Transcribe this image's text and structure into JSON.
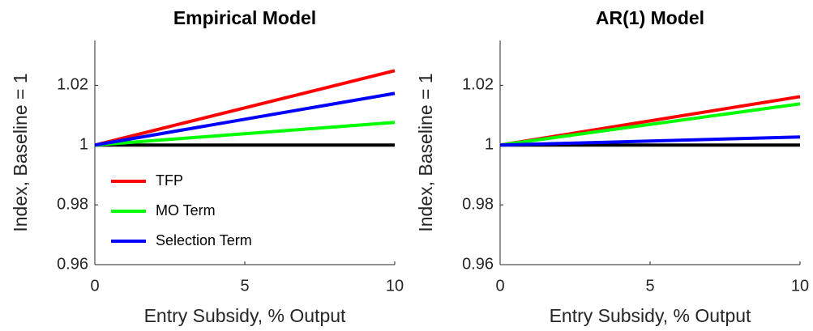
{
  "chart_data": [
    {
      "type": "line",
      "title": "Empirical Model",
      "x_label": "Entry Subsidy, % Output",
      "y_label": "Index, Baseline = 1",
      "x": [
        0,
        10
      ],
      "series": [
        {
          "name": "TFP",
          "color": "#ff0000",
          "values": [
            1,
            1.0249
          ]
        },
        {
          "name": "MO Term",
          "color": "#00ff00",
          "values": [
            1,
            1.0076
          ]
        },
        {
          "name": "Selection Term",
          "color": "#0000ff",
          "values": [
            1,
            1.0173
          ]
        }
      ],
      "reference_line": 1,
      "reference_color": "#000000",
      "xlim": [
        0,
        10
      ],
      "xticks": [
        0,
        5,
        10
      ],
      "ylim": [
        0.96,
        1.035
      ],
      "yticks": [
        0.96,
        0.98,
        1,
        1.02
      ],
      "legend": "lower-left"
    },
    {
      "type": "line",
      "title": "AR(1) Model",
      "x_label": "Entry Subsidy, % Output",
      "y_label": "Index, Baseline = 1",
      "x": [
        0,
        10
      ],
      "series": [
        {
          "color": "#ff0000",
          "values": [
            1,
            1.0162
          ]
        },
        {
          "color": "#00ff00",
          "values": [
            1,
            1.0138
          ]
        },
        {
          "color": "#0000ff",
          "values": [
            1,
            1.0027
          ]
        }
      ],
      "reference_line": 1,
      "reference_color": "#000000",
      "xlim": [
        0,
        10
      ],
      "xticks": [
        0,
        5,
        10
      ],
      "ylim": [
        0.96,
        1.035
      ],
      "yticks": [
        0.96,
        0.98,
        1,
        1.02
      ]
    }
  ]
}
